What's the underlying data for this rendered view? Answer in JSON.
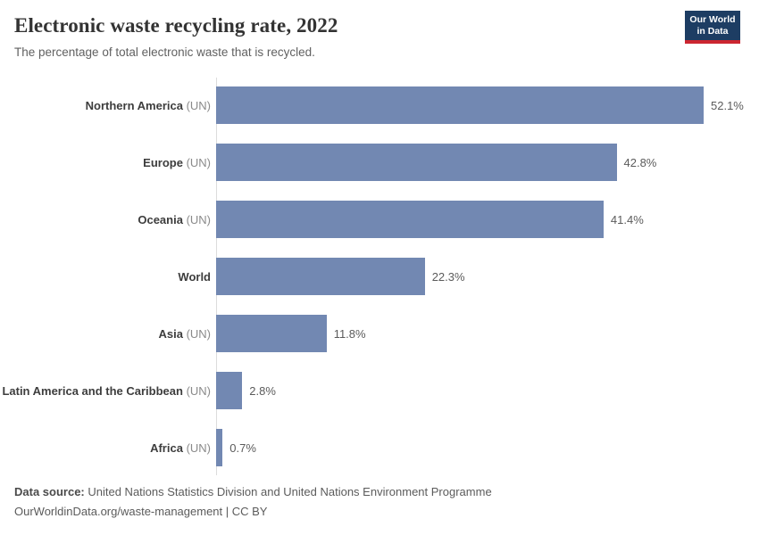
{
  "header": {
    "title": "Electronic waste recycling rate, 2022",
    "subtitle": "The percentage of total electronic waste that is recycled.",
    "logo": {
      "line1": "Our World",
      "line2": "in Data"
    }
  },
  "chart_data": {
    "type": "bar",
    "orientation": "horizontal",
    "title": "Electronic waste recycling rate, 2022",
    "xlabel": "",
    "ylabel": "",
    "unit": "%",
    "xlim": [
      0,
      52.1
    ],
    "grid": false,
    "legend": false,
    "categories": [
      "Northern America (UN)",
      "Europe (UN)",
      "Oceania (UN)",
      "World",
      "Asia (UN)",
      "Latin America and the Caribbean (UN)",
      "Africa (UN)"
    ],
    "values": [
      52.1,
      42.8,
      41.4,
      22.3,
      11.8,
      2.8,
      0.7
    ],
    "rows": [
      {
        "label": "Northern America",
        "suffix": " (UN)",
        "value": 52.1,
        "value_label": "52.1%"
      },
      {
        "label": "Europe",
        "suffix": " (UN)",
        "value": 42.8,
        "value_label": "42.8%"
      },
      {
        "label": "Oceania",
        "suffix": " (UN)",
        "value": 41.4,
        "value_label": "41.4%"
      },
      {
        "label": "World",
        "suffix": "",
        "value": 22.3,
        "value_label": "22.3%"
      },
      {
        "label": "Asia",
        "suffix": " (UN)",
        "value": 11.8,
        "value_label": "11.8%"
      },
      {
        "label": "Latin America and the Caribbean",
        "suffix": " (UN)",
        "value": 2.8,
        "value_label": "2.8%"
      },
      {
        "label": "Africa",
        "suffix": " (UN)",
        "value": 0.7,
        "value_label": "0.7%"
      }
    ]
  },
  "footer": {
    "source_label": "Data source:",
    "source_text": " United Nations Statistics Division and United Nations Environment Programme",
    "citation": "OurWorldinData.org/waste-management | CC BY"
  },
  "colors": {
    "bar": "#7288b2",
    "logo_background": "#1d3d63",
    "logo_underline": "#cc2631",
    "axis_line": "#dcdcdc",
    "title_text": "#333333",
    "subtitle_text": "#616161",
    "value_text": "#5b5b5b"
  }
}
